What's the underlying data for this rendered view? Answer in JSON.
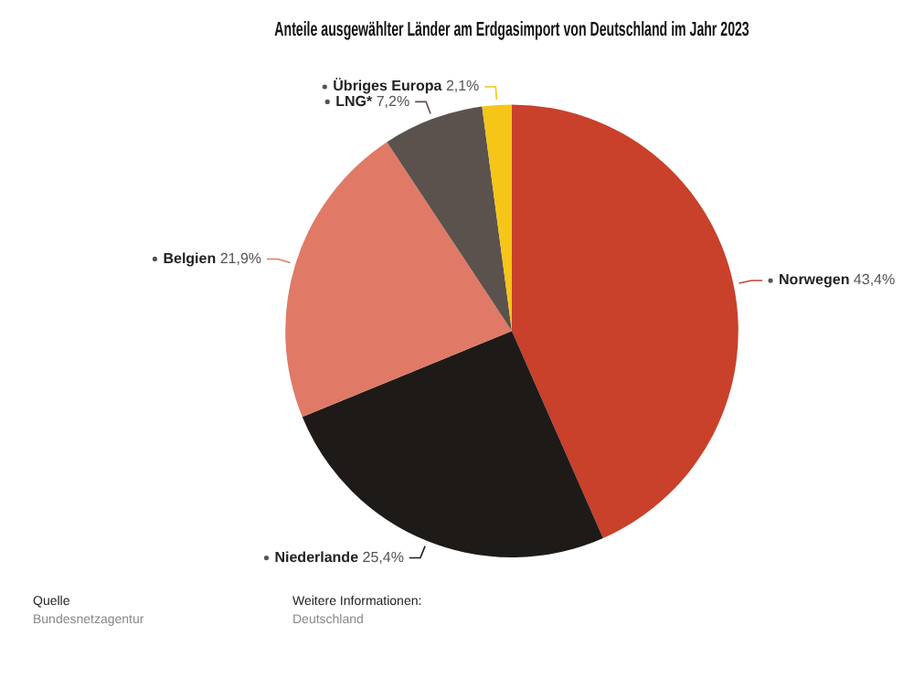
{
  "chart_data": {
    "type": "pie",
    "title": "Anteile ausgewählter Länder am Erdgasimport von Deutschland im Jahr 2023",
    "categories": [
      "Norwegen",
      "Niederlande",
      "Belgien",
      "LNG*",
      "Übriges Europa"
    ],
    "values": [
      43.4,
      25.4,
      21.9,
      7.2,
      2.1
    ],
    "value_labels": [
      "43,4%",
      "25,4%",
      "21,9%",
      "7,2%",
      "2,1%"
    ],
    "colors": [
      "#c9402b",
      "#1e1a18",
      "#e07a66",
      "#5b524d",
      "#f5c518"
    ],
    "legend": false,
    "annotations": [
      "Quelle",
      "Bundesnetzagentur",
      "Weitere Informationen:",
      "Deutschland"
    ]
  }
}
